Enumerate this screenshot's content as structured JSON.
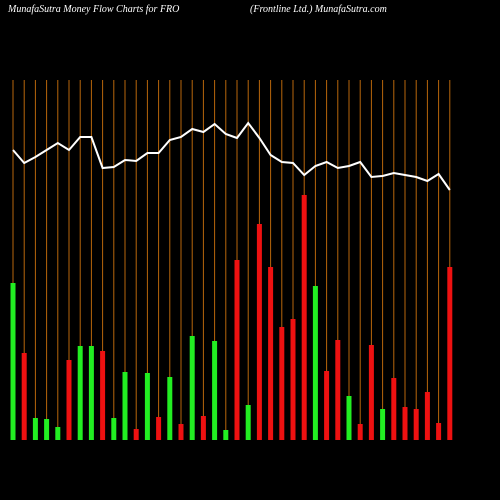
{
  "chart_data": {
    "type": "money-flow",
    "title": "MunafaSutra  Money Flow  Charts for FRO",
    "subtitle": "(Frontline   Ltd.) MunafaSutra.com",
    "categories": [
      null,
      null,
      null,
      null,
      null,
      null,
      null,
      null,
      null,
      null,
      null,
      null,
      null,
      null,
      null,
      null,
      null,
      null,
      null,
      null,
      null,
      null,
      null,
      null,
      null,
      null,
      null,
      null,
      null,
      null,
      null,
      null,
      null,
      null,
      null,
      null,
      null,
      null,
      null,
      null
    ],
    "ylim": [
      0,
      360
    ],
    "grid": true,
    "grid_color": "#b8660b",
    "series": [
      {
        "kind": "bar",
        "values": [
          157,
          87,
          22,
          21,
          13,
          80,
          94,
          94,
          89,
          22,
          68,
          11,
          67,
          23,
          63,
          16,
          104,
          24,
          99,
          10,
          180,
          35,
          216,
          173,
          113,
          121,
          245,
          154,
          69,
          100,
          44,
          16,
          95,
          31,
          62,
          33,
          31,
          48,
          17,
          173
        ],
        "colors": [
          "#22ee22",
          "#ee1111",
          "#22ee22",
          "#22ee22",
          "#22ee22",
          "#ee1111",
          "#22ee22",
          "#22ee22",
          "#ee1111",
          "#22ee22",
          "#22ee22",
          "#ee1111",
          "#22ee22",
          "#ee1111",
          "#22ee22",
          "#ee1111",
          "#22ee22",
          "#ee1111",
          "#22ee22",
          "#22ee22",
          "#ee1111",
          "#22ee22",
          "#ee1111",
          "#ee1111",
          "#ee1111",
          "#ee1111",
          "#ee1111",
          "#22ee22",
          "#ee1111",
          "#ee1111",
          "#22ee22",
          "#ee1111",
          "#ee1111",
          "#22ee22",
          "#ee1111",
          "#ee1111",
          "#ee1111",
          "#ee1111",
          "#ee1111",
          "#ee1111"
        ]
      },
      {
        "kind": "line",
        "color": "#ffffff",
        "values": [
          290,
          277,
          283,
          290,
          297,
          290,
          303,
          303,
          272,
          273,
          280,
          279,
          287,
          287,
          300,
          303,
          311,
          308,
          316,
          306,
          302,
          317,
          302,
          285,
          278,
          277,
          265,
          274,
          278,
          272,
          274,
          278,
          263,
          264,
          267,
          265,
          263,
          259,
          266,
          250
        ]
      }
    ]
  }
}
